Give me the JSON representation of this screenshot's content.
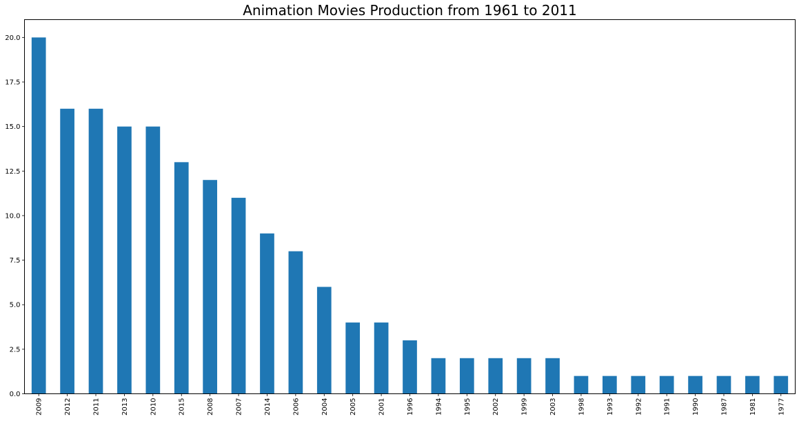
{
  "chart_data": {
    "type": "bar",
    "title": "Animation Movies Production from 1961 to 2011",
    "xlabel": "",
    "ylabel": "",
    "categories": [
      "2009",
      "2012",
      "2011",
      "2013",
      "2010",
      "2015",
      "2008",
      "2007",
      "2014",
      "2006",
      "2004",
      "2005",
      "2001",
      "1996",
      "1994",
      "1995",
      "2002",
      "1999",
      "2003",
      "1998",
      "1993",
      "1992",
      "1991",
      "1990",
      "1987",
      "1981",
      "1977"
    ],
    "values": [
      20,
      16,
      16,
      15,
      15,
      13,
      12,
      11,
      9,
      8,
      6,
      4,
      4,
      3,
      2,
      2,
      2,
      2,
      2,
      1,
      1,
      1,
      1,
      1,
      1,
      1,
      1
    ],
    "ylim": [
      0,
      21
    ],
    "yticks": [
      0.0,
      2.5,
      5.0,
      7.5,
      10.0,
      12.5,
      15.0,
      17.5,
      20.0
    ],
    "grid": false,
    "legend": "none",
    "bar_color": "#1f77b4"
  }
}
